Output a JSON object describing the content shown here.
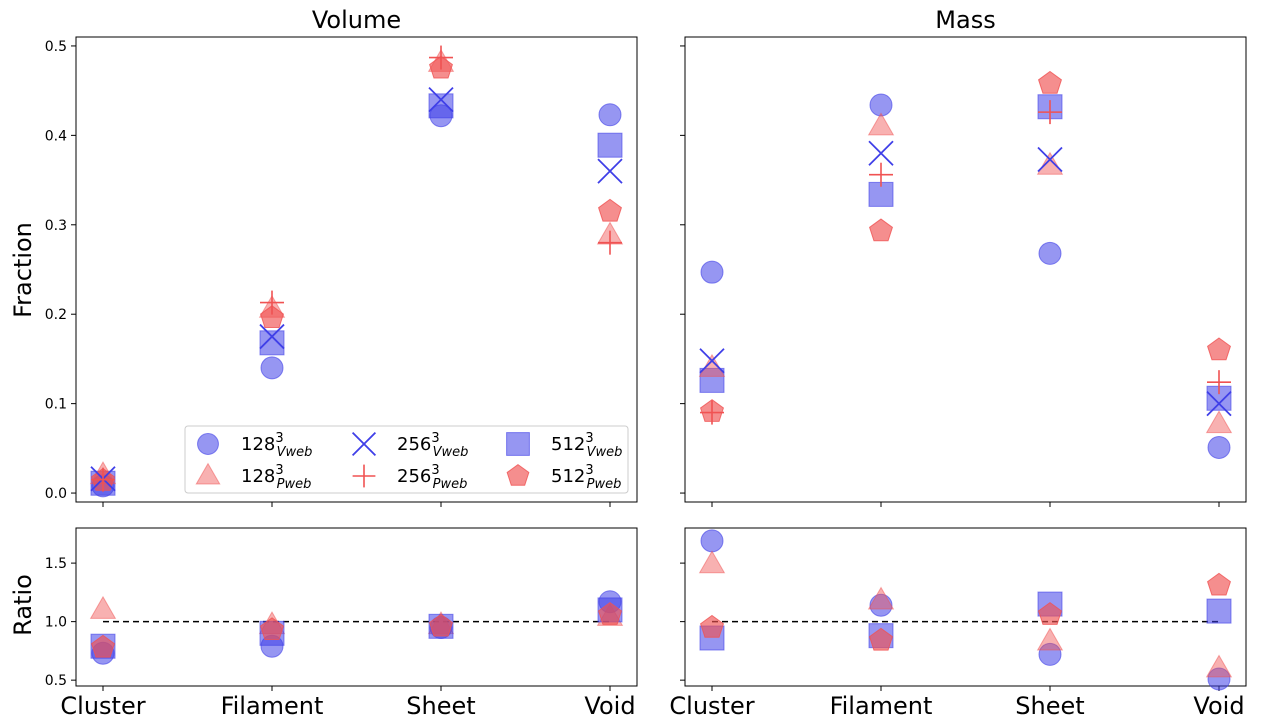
{
  "colors": {
    "vweb": "#3f3fe8",
    "pweb": "#f05252"
  },
  "chart_data": {
    "type": "scatter",
    "categories": [
      "Cluster",
      "Filament",
      "Sheet",
      "Void"
    ],
    "ylabel_top": "Fraction",
    "ylabel_bottom": "Ratio",
    "ylim_top": [
      -0.01,
      0.51
    ],
    "ylim_bottom": [
      0.45,
      1.8
    ],
    "yticks_top": [
      "0.0",
      "0.1",
      "0.2",
      "0.3",
      "0.4",
      "0.5"
    ],
    "yticks_bottom": [
      "0.5",
      "1.0",
      "1.5"
    ],
    "reference_line": 1.0,
    "grid": false,
    "legend_placement": "lower-right of Volume panel",
    "legend": [
      {
        "base": "128",
        "sup": "3",
        "sub": "Vweb",
        "marker": "circle"
      },
      {
        "base": "256",
        "sup": "3",
        "sub": "Vweb",
        "marker": "x"
      },
      {
        "base": "512",
        "sup": "3",
        "sub": "Vweb",
        "marker": "square"
      },
      {
        "base": "128",
        "sup": "3",
        "sub": "Pweb",
        "marker": "triangle"
      },
      {
        "base": "256",
        "sup": "3",
        "sub": "Pweb",
        "marker": "plus"
      },
      {
        "base": "512",
        "sup": "3",
        "sub": "Pweb",
        "marker": "pentagon"
      }
    ],
    "panels": [
      {
        "title": "Volume",
        "fraction": [
          {
            "key": "128_Vweb",
            "values": [
              0.008,
              0.14,
              0.422,
              0.423
            ]
          },
          {
            "key": "256_Vweb",
            "values": [
              0.016,
              0.175,
              0.44,
              0.36
            ]
          },
          {
            "key": "512_Vweb",
            "values": [
              0.011,
              0.168,
              0.433,
              0.389
            ]
          },
          {
            "key": "128_Pweb",
            "values": [
              0.02,
              0.206,
              0.481,
              0.288
            ]
          },
          {
            "key": "256_Pweb",
            "values": [
              0.015,
              0.213,
              0.487,
              0.28
            ]
          },
          {
            "key": "512_Pweb",
            "values": [
              0.014,
              0.196,
              0.475,
              0.315
            ]
          }
        ],
        "ratio": [
          {
            "key": "128",
            "values": [
              0.73,
              0.79,
              0.95,
              1.17
            ]
          },
          {
            "key": "128_tri",
            "values": [
              1.1,
              0.97,
              0.97,
              1.04
            ]
          },
          {
            "key": "512_sq",
            "values": [
              0.79,
              0.9,
              0.96,
              1.1
            ]
          },
          {
            "key": "512_pent",
            "values": [
              0.78,
              0.93,
              0.96,
              1.06
            ]
          }
        ]
      },
      {
        "title": "Mass",
        "fraction": [
          {
            "key": "128_Vweb",
            "values": [
              0.247,
              0.434,
              0.268,
              0.051
            ]
          },
          {
            "key": "256_Vweb",
            "values": [
              0.148,
              0.38,
              0.373,
              0.1
            ]
          },
          {
            "key": "512_Vweb",
            "values": [
              0.126,
              0.334,
              0.432,
              0.106
            ]
          },
          {
            "key": "128_Pweb",
            "values": [
              0.14,
              0.41,
              0.366,
              0.077
            ]
          },
          {
            "key": "256_Pweb",
            "values": [
              0.09,
              0.356,
              0.426,
              0.124
            ]
          },
          {
            "key": "512_Pweb",
            "values": [
              0.091,
              0.293,
              0.458,
              0.16
            ]
          }
        ],
        "ratio": [
          {
            "key": "128",
            "values": [
              1.69,
              1.14,
              0.72,
              0.51
            ]
          },
          {
            "key": "128_tri",
            "values": [
              1.49,
              1.18,
              0.83,
              0.6
            ]
          },
          {
            "key": "512_sq",
            "values": [
              0.86,
              0.88,
              1.15,
              1.09
            ]
          },
          {
            "key": "512_pent",
            "values": [
              0.95,
              0.84,
              1.06,
              1.31
            ]
          }
        ]
      }
    ]
  }
}
